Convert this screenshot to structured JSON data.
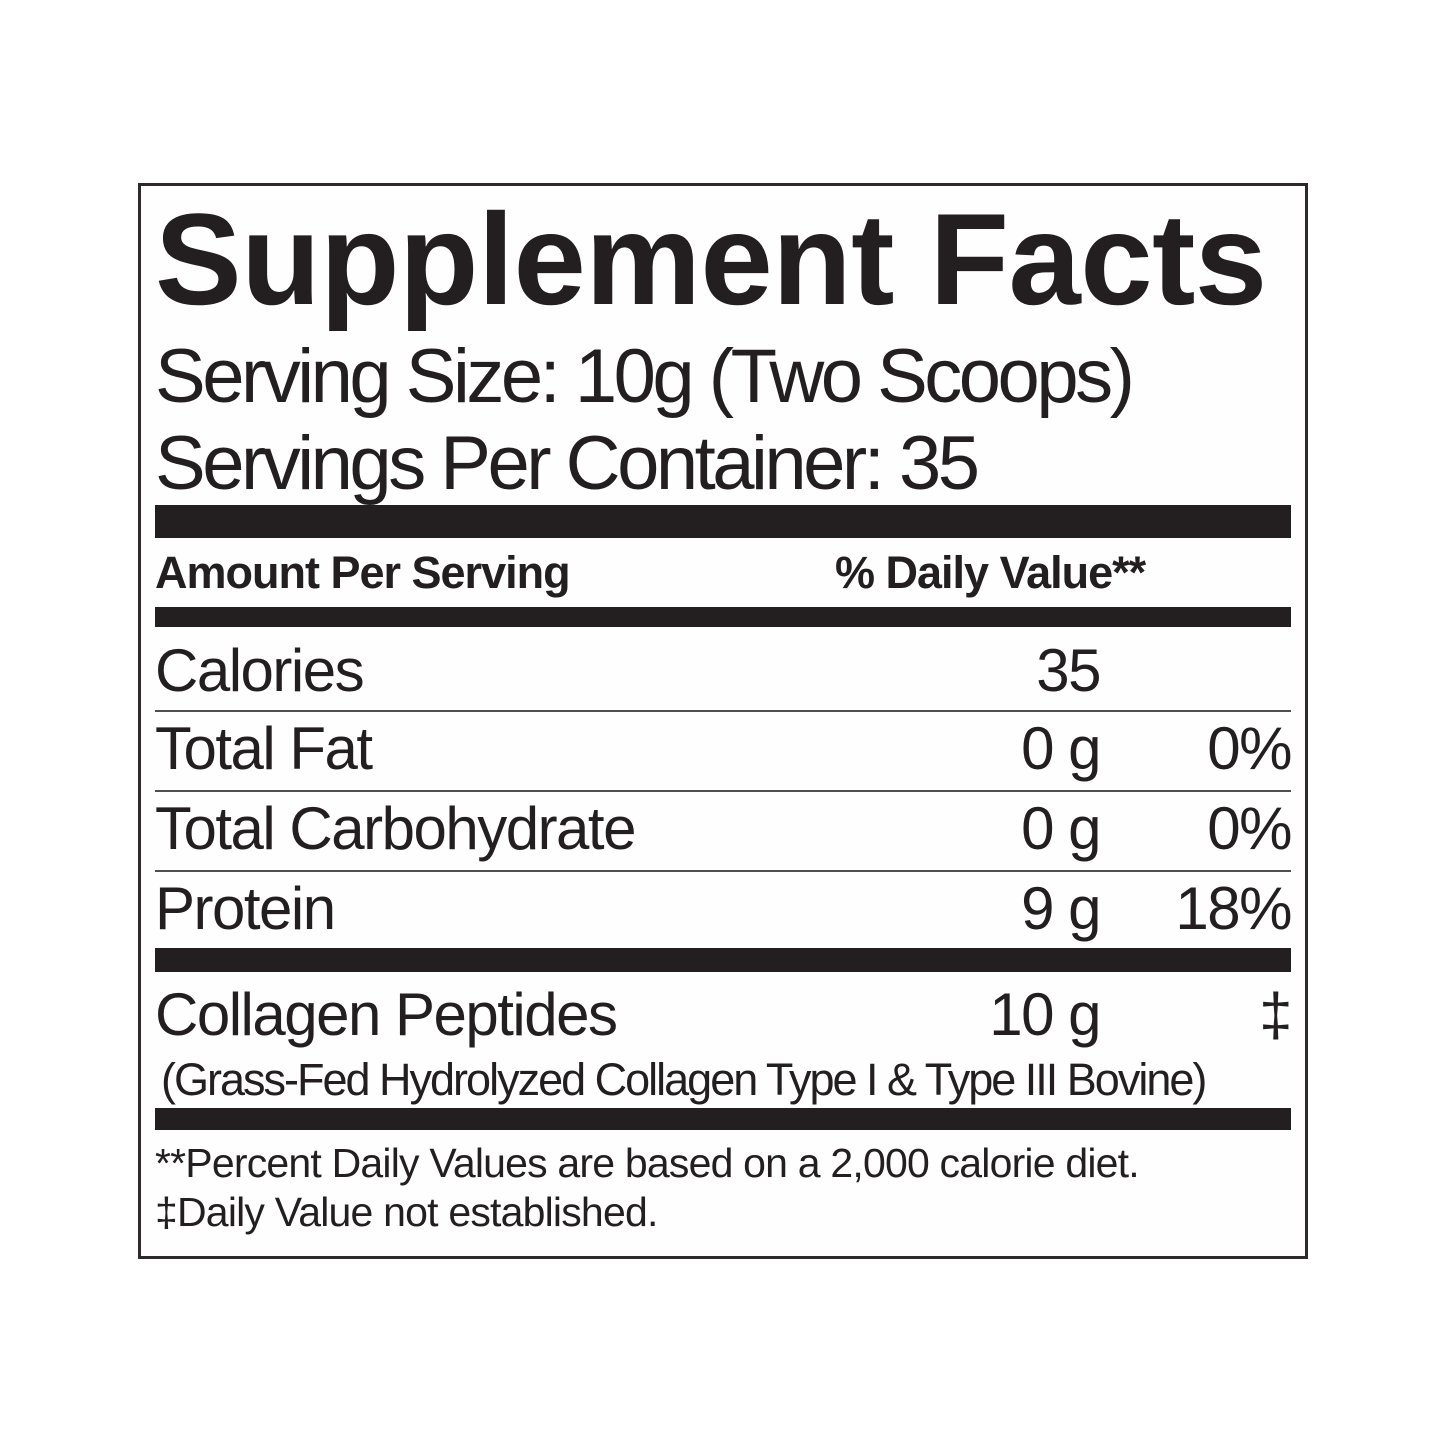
{
  "label": {
    "title": "Supplement Facts",
    "serving_size": "Serving Size: 10g (Two Scoops)",
    "servings_per_container": "Servings Per Container: 35",
    "columns": {
      "amount_header": "Amount Per Serving",
      "dv_header": "% Daily Value**"
    },
    "rows": [
      {
        "name": "Calories",
        "amount": "35",
        "dv": ""
      },
      {
        "name": "Total Fat",
        "amount": "0 g",
        "dv": "0%"
      },
      {
        "name": "Total Carbohydrate",
        "amount": "0 g",
        "dv": "0%"
      },
      {
        "name": "Protein",
        "amount": "9 g",
        "dv": "18%"
      }
    ],
    "ingredient": {
      "name": "Collagen Peptides",
      "amount": "10 g",
      "dv": "‡",
      "description": "(Grass-Fed Hydrolyzed Collagen Type I & Type III Bovine)"
    },
    "footnotes": {
      "line1": "**Percent Daily Values are based on a 2,000 calorie diet.",
      "line2": "‡Daily Value not established."
    },
    "colors": {
      "ink": "#231f20"
    }
  }
}
